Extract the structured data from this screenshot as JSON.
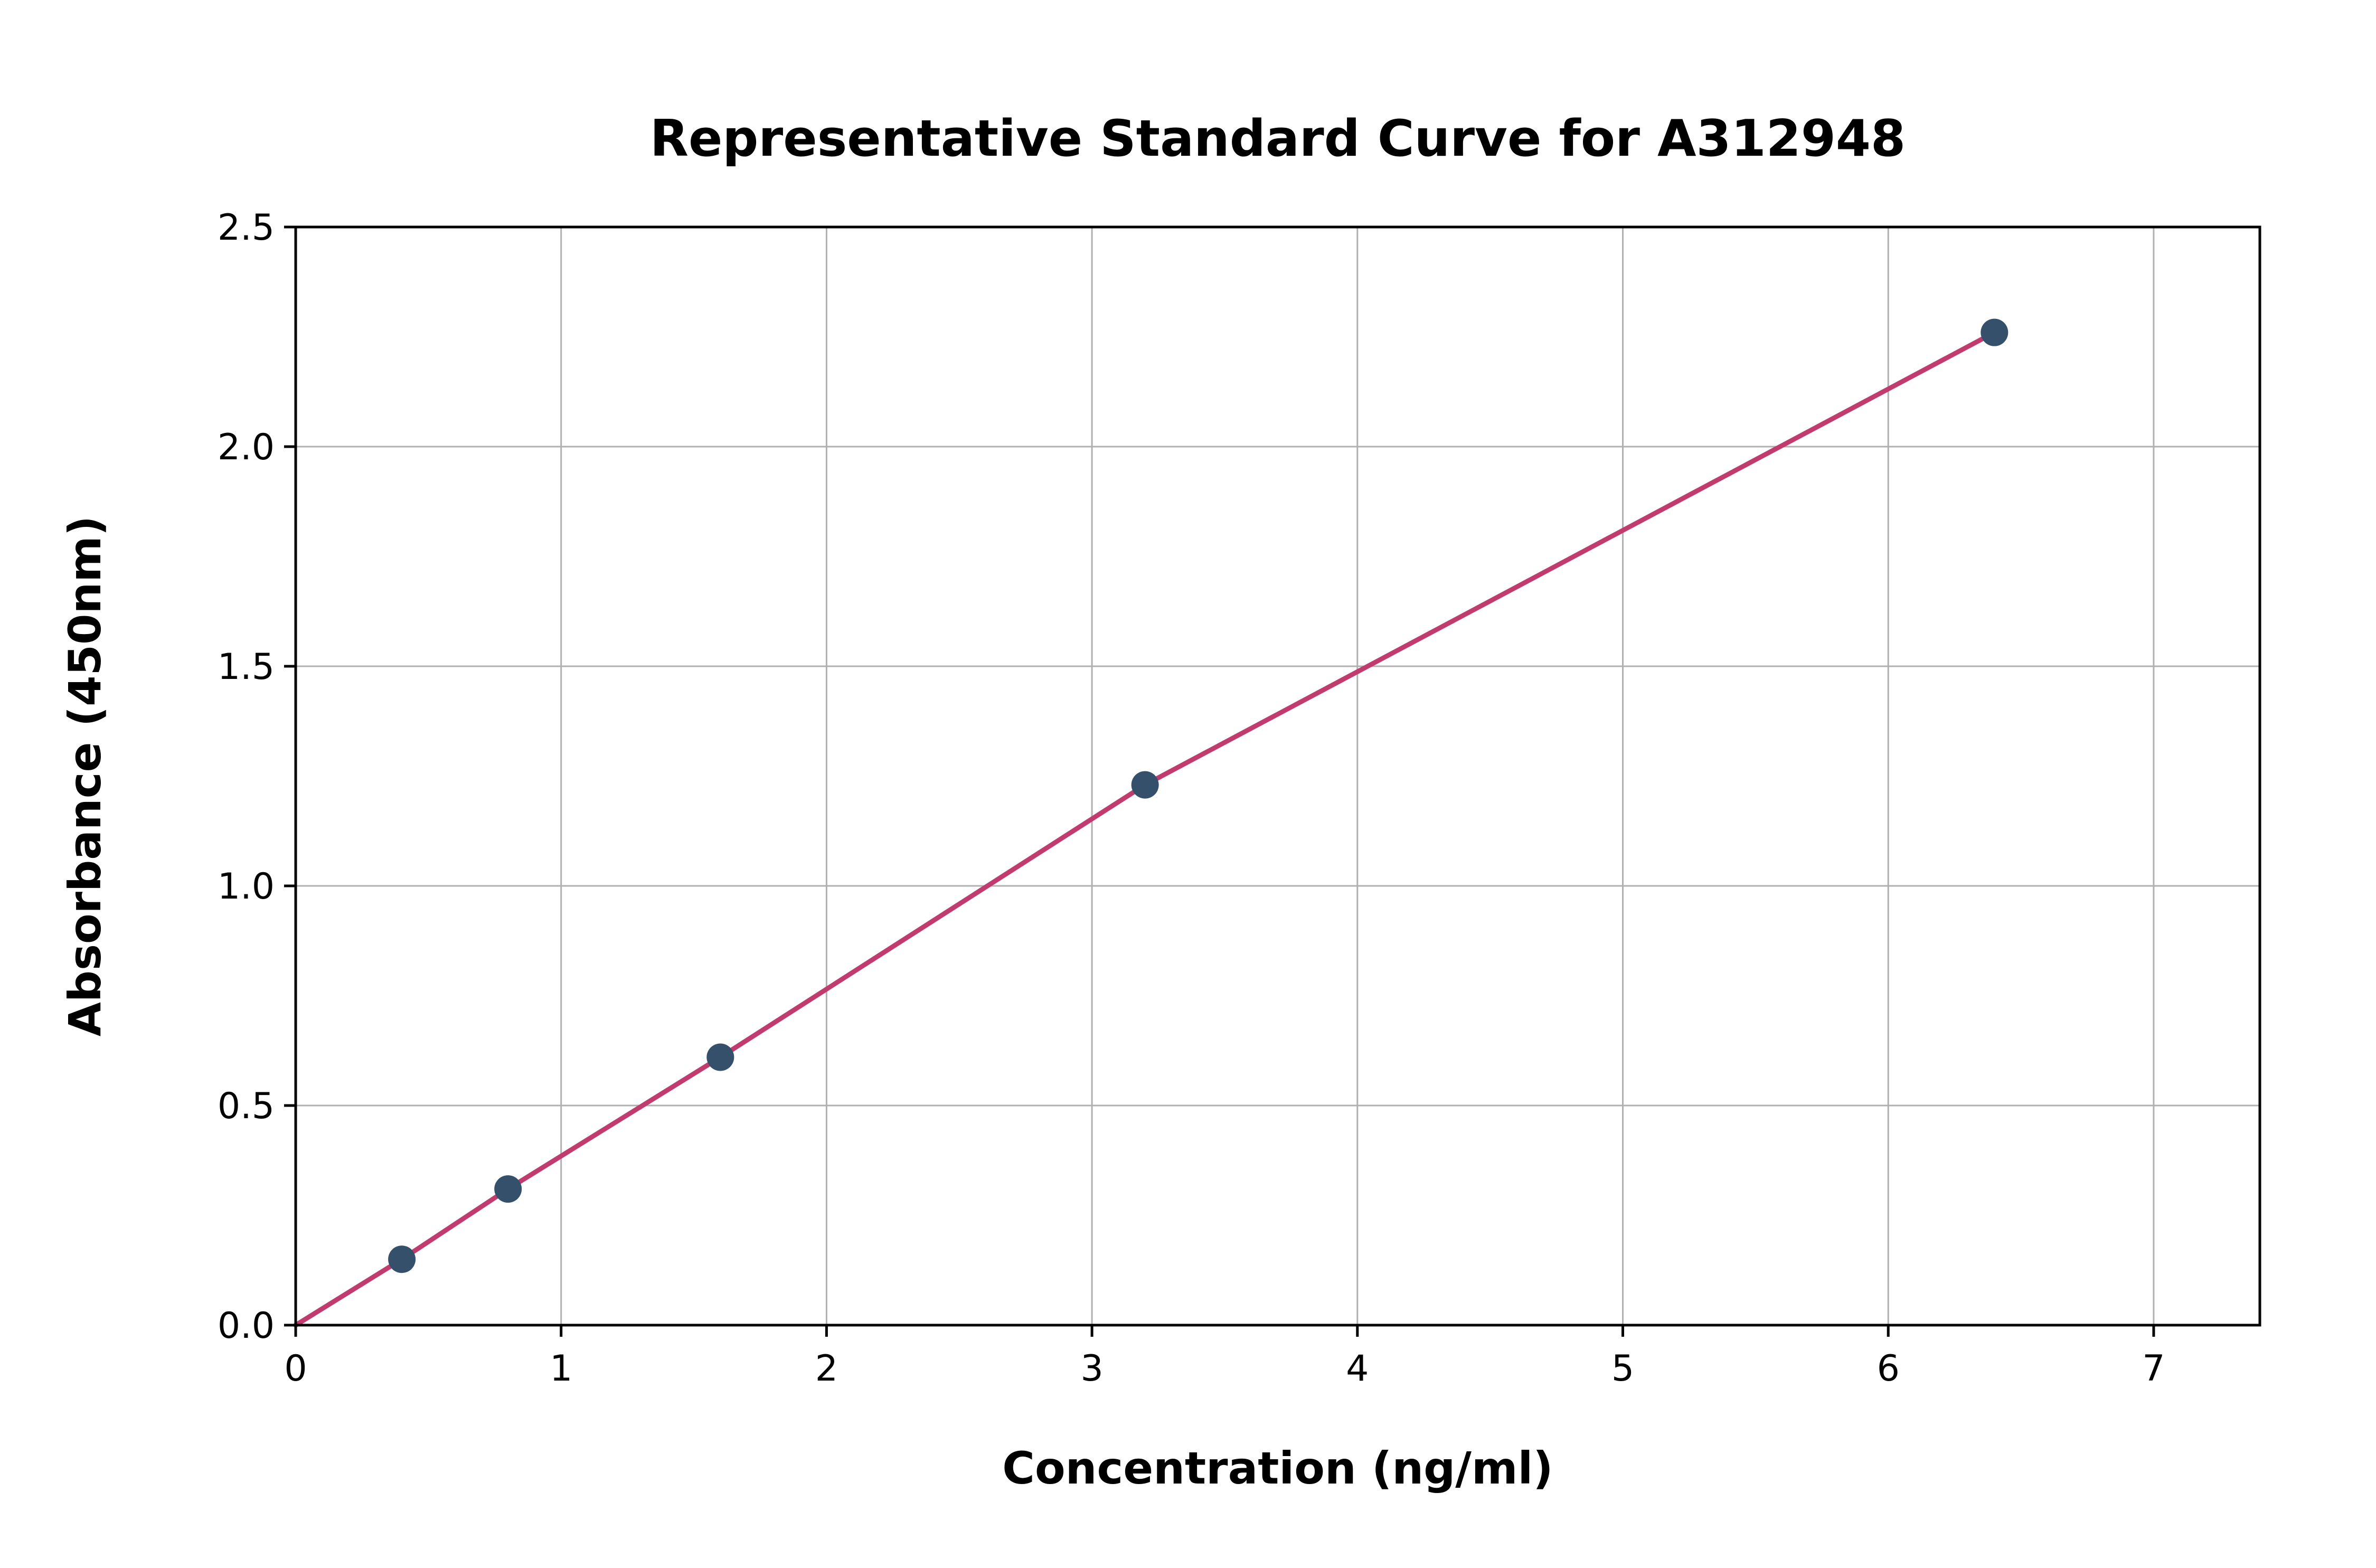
{
  "chart": {
    "title": "Representative Standard Curve for A312948",
    "xlabel": "Concentration (ng/ml)",
    "ylabel": "Absorbance (450nm)"
  },
  "chart_data": {
    "type": "scatter",
    "title": "Representative Standard Curve for A312948",
    "xlabel": "Concentration (ng/ml)",
    "ylabel": "Absorbance (450nm)",
    "points": {
      "x": [
        0.4,
        0.8,
        1.6,
        3.2,
        6.4
      ],
      "y": [
        0.15,
        0.31,
        0.61,
        1.23,
        2.26
      ]
    },
    "line": {
      "x": [
        0,
        0.4,
        0.8,
        1.6,
        3.2,
        6.4
      ],
      "y": [
        0.0,
        0.15,
        0.31,
        0.61,
        1.23,
        2.26
      ]
    },
    "xlim": [
      0,
      7.4
    ],
    "ylim": [
      0,
      2.5
    ],
    "xticks": [
      0,
      1,
      2,
      3,
      4,
      5,
      6,
      7
    ],
    "yticks": [
      0.0,
      0.5,
      1.0,
      1.5,
      2.0,
      2.5
    ],
    "xtick_labels": [
      "0",
      "1",
      "2",
      "3",
      "4",
      "5",
      "6",
      "7"
    ],
    "ytick_labels": [
      "0.0",
      "0.5",
      "1.0",
      "1.5",
      "2.0",
      "2.5"
    ],
    "grid": true,
    "legend": "none",
    "line_color": "#c23b6e",
    "point_color": "#35506b",
    "grid_color": "#b0b0b0",
    "axis_color": "#000000"
  }
}
